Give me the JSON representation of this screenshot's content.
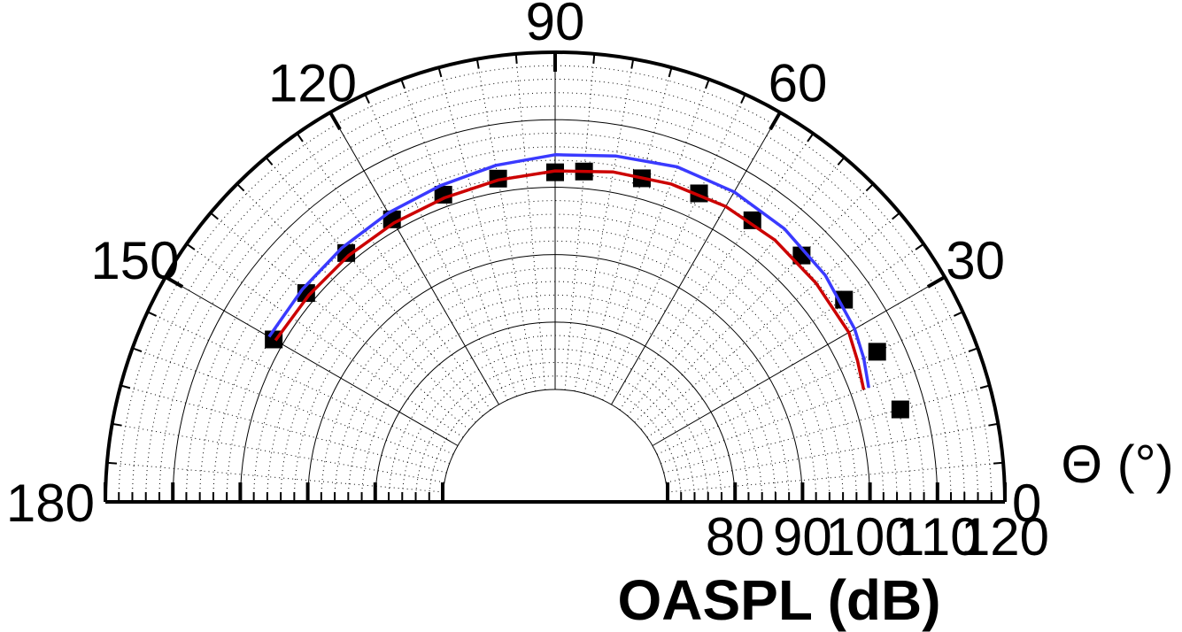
{
  "chart_data": {
    "type": "scatter",
    "polar": true,
    "half_circle": true,
    "radial_axis": {
      "label": "OASPL (dB)",
      "range": [
        70,
        120
      ],
      "ticks": [
        80,
        90,
        100,
        110,
        120
      ],
      "tick_labels": [
        "80",
        "90",
        "100",
        "110",
        "120"
      ],
      "minor_step": 2
    },
    "angular_axis": {
      "label": "Θ (°)",
      "range": [
        0,
        180
      ],
      "ticks": [
        0,
        30,
        60,
        90,
        120,
        150,
        180
      ],
      "tick_labels": [
        "0",
        "30",
        "60",
        "90",
        "120",
        "150",
        "180"
      ],
      "minor_step": 5
    },
    "grid": true,
    "series": [
      {
        "marker": "square",
        "color": "#000000",
        "points": [
          {
            "theta": 15,
            "r": 106.3
          },
          {
            "theta": 25,
            "r": 106.0
          },
          {
            "theta": 35,
            "r": 105.6
          },
          {
            "theta": 45,
            "r": 105.0
          },
          {
            "theta": 55,
            "r": 104.3
          },
          {
            "theta": 65,
            "r": 103.8
          },
          {
            "theta": 75,
            "r": 103.0
          },
          {
            "theta": 85,
            "r": 102.5
          },
          {
            "theta": 90,
            "r": 102.2
          },
          {
            "theta": 100,
            "r": 102.0
          },
          {
            "theta": 110,
            "r": 101.8
          },
          {
            "theta": 120,
            "r": 101.7
          },
          {
            "theta": 130,
            "r": 101.5
          },
          {
            "theta": 140,
            "r": 101.5
          },
          {
            "theta": 150,
            "r": 101.5
          }
        ]
      },
      {
        "marker": "line",
        "color": "#3a3aff",
        "points": [
          {
            "theta": 20,
            "r": 102.8
          },
          {
            "theta": 25,
            "r": 103.8
          },
          {
            "theta": 30,
            "r": 104.6
          },
          {
            "theta": 40,
            "r": 105.6
          },
          {
            "theta": 50,
            "r": 106.2
          },
          {
            "theta": 60,
            "r": 106.4
          },
          {
            "theta": 70,
            "r": 106.2
          },
          {
            "theta": 80,
            "r": 105.4
          },
          {
            "theta": 90,
            "r": 104.8
          },
          {
            "theta": 100,
            "r": 104.0
          },
          {
            "theta": 110,
            "r": 103.2
          },
          {
            "theta": 120,
            "r": 102.8
          },
          {
            "theta": 130,
            "r": 102.5
          },
          {
            "theta": 140,
            "r": 102.3
          },
          {
            "theta": 150,
            "r": 102.3
          }
        ]
      },
      {
        "marker": "line",
        "color": "#cc0000",
        "points": [
          {
            "theta": 20,
            "r": 102.0
          },
          {
            "theta": 25,
            "r": 102.8
          },
          {
            "theta": 30,
            "r": 103.6
          },
          {
            "theta": 40,
            "r": 103.8
          },
          {
            "theta": 50,
            "r": 104.0
          },
          {
            "theta": 60,
            "r": 103.9
          },
          {
            "theta": 70,
            "r": 103.5
          },
          {
            "theta": 80,
            "r": 103.0
          },
          {
            "theta": 90,
            "r": 102.4
          },
          {
            "theta": 100,
            "r": 101.8
          },
          {
            "theta": 110,
            "r": 101.3
          },
          {
            "theta": 120,
            "r": 101.1
          },
          {
            "theta": 130,
            "r": 101.0
          },
          {
            "theta": 140,
            "r": 101.0
          },
          {
            "theta": 150,
            "r": 101.2
          }
        ]
      }
    ]
  }
}
